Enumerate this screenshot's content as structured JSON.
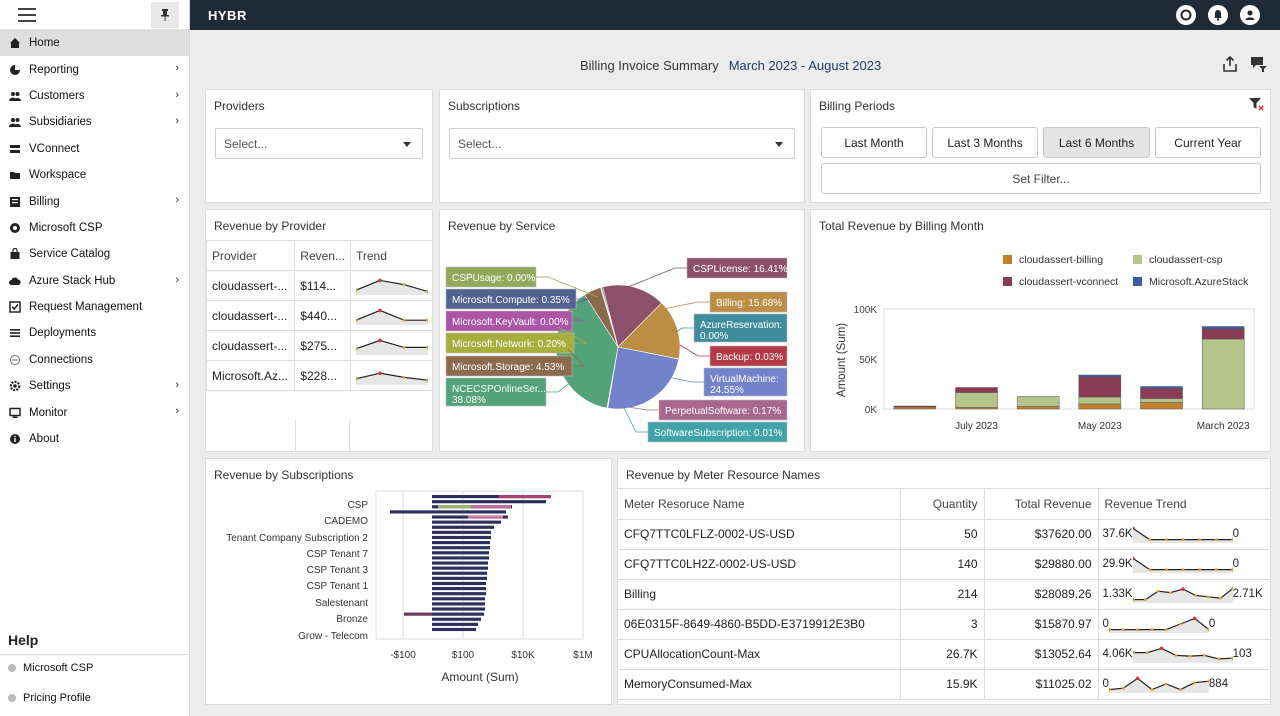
{
  "app": {
    "brand": "HYBR"
  },
  "sidebar": {
    "items": [
      {
        "label": "Home",
        "icon": "home-icon",
        "chevron": false,
        "active": true
      },
      {
        "label": "Reporting",
        "icon": "chart-pie-icon",
        "chevron": true
      },
      {
        "label": "Customers",
        "icon": "users-icon",
        "chevron": true
      },
      {
        "label": "Subsidiaries",
        "icon": "users-icon",
        "chevron": true
      },
      {
        "label": "VConnect",
        "icon": "server-icon",
        "chevron": false
      },
      {
        "label": "Workspace",
        "icon": "folder-icon",
        "chevron": false
      },
      {
        "label": "Billing",
        "icon": "billing-icon",
        "chevron": true
      },
      {
        "label": "Microsoft CSP",
        "icon": "globe-icon",
        "chevron": false
      },
      {
        "label": "Service Catalog",
        "icon": "bag-icon",
        "chevron": false
      },
      {
        "label": "Azure Stack Hub",
        "icon": "cloud-icon",
        "chevron": true
      },
      {
        "label": "Request Management",
        "icon": "check-square-icon",
        "chevron": false
      },
      {
        "label": "Deployments",
        "icon": "list-icon",
        "chevron": false
      },
      {
        "label": "Connections",
        "icon": "plug-icon",
        "chevron": false
      },
      {
        "label": "Settings",
        "icon": "gear-icon",
        "chevron": true
      },
      {
        "label": "Monitor",
        "icon": "monitor-icon",
        "chevron": true
      },
      {
        "label": "About",
        "icon": "info-icon",
        "chevron": false
      }
    ],
    "help_title": "Help",
    "help_items": [
      "Microsoft CSP",
      "Pricing Profile"
    ]
  },
  "header": {
    "title": "Billing Invoice Summary",
    "range": "March 2023 - August 2023"
  },
  "filters": {
    "providers": {
      "title": "Providers",
      "placeholder": "Select..."
    },
    "subscriptions": {
      "title": "Subscriptions",
      "placeholder": "Select..."
    },
    "billing_periods": {
      "title": "Billing Periods",
      "buttons": [
        "Last Month",
        "Last 3 Months",
        "Last 6 Months",
        "Current Year"
      ],
      "selected": "Last 6 Months",
      "set_filter": "Set Filter..."
    }
  },
  "revenue_by_provider": {
    "title": "Revenue by Provider",
    "columns": [
      "Provider",
      "Reven...",
      "Trend"
    ],
    "rows": [
      {
        "provider": "cloudassert-...",
        "revenue": "$114..."
      },
      {
        "provider": "cloudassert-...",
        "revenue": "$440..."
      },
      {
        "provider": "cloudassert-...",
        "revenue": "$275..."
      },
      {
        "provider": "Microsoft.Az...",
        "revenue": "$228..."
      }
    ]
  },
  "revenue_by_service": {
    "title": "Revenue by Service",
    "labels": [
      {
        "text": "CSPUsage: 0.00%",
        "color": "#93a85a"
      },
      {
        "text": "Microsoft.Compute: 0.35%",
        "color": "#52638f"
      },
      {
        "text": "Microsoft.KeyVault: 0.00%",
        "color": "#ab55a6"
      },
      {
        "text": "Microsoft.Network: 0.20%",
        "color": "#a9ad3c"
      },
      {
        "text": "Microsoft.Storage: 4.53%",
        "color": "#8c6a4e"
      },
      {
        "text": "NCECSPOnlineSer...",
        "text2": "38.08%",
        "color": "#54a27a"
      },
      {
        "text": "CSPLicense: 16.41%",
        "color": "#8c5068"
      },
      {
        "text": "Billing: 15.68%",
        "color": "#bc8d43"
      },
      {
        "text": "AzureReservation:",
        "text2": "0.00%",
        "color": "#3f8d9c"
      },
      {
        "text": "Backup: 0.03%",
        "color": "#b63a45"
      },
      {
        "text": "VirtualMachine:",
        "text2": "24.55%",
        "color": "#7383cb"
      },
      {
        "text": "PerpetualSoftware: 0.17%",
        "color": "#a8678f"
      },
      {
        "text": "SoftwareSubscription: 0.01%",
        "color": "#3fa3a9"
      }
    ]
  },
  "revenue_by_meter": {
    "title": "Revenue by Meter Resource Names",
    "columns": [
      "Meter Resoruce Name",
      "Quantity",
      "Total Revenue",
      "Revenue Trend"
    ],
    "rows": [
      {
        "name": "CFQ7TTC0LFLZ-0002-US-USD",
        "quantity": "50",
        "revenue": "$37620.00",
        "t_start": "37.6K",
        "t_end": "0"
      },
      {
        "name": "CFQ7TTC0LH2Z-0002-US-USD",
        "quantity": "140",
        "revenue": "$29880.00",
        "t_start": "29.9K",
        "t_end": "0"
      },
      {
        "name": "Billing",
        "quantity": "214",
        "revenue": "$28089.26",
        "t_start": "1.33K",
        "t_end": "2.71K"
      },
      {
        "name": "06E0315F-8649-4860-B5DD-E3719912E3B0",
        "quantity": "3",
        "revenue": "$15870.97",
        "t_start": "0",
        "t_end": "0"
      },
      {
        "name": "CPUAllocationCount-Max",
        "quantity": "26.7K",
        "revenue": "$13052.64",
        "t_start": "4.06K",
        "t_end": "103"
      },
      {
        "name": "MemoryConsumed-Max",
        "quantity": "15.9K",
        "revenue": "$11025.02",
        "t_start": "0",
        "t_end": "884"
      }
    ]
  },
  "chart_data": [
    {
      "type": "pie",
      "title": "Revenue by Service",
      "slices": [
        {
          "label": "NCECSPOnlineSer...",
          "value": 38.08,
          "color": "#54a27a"
        },
        {
          "label": "CSPLicense",
          "value": 16.41,
          "color": "#8c5068"
        },
        {
          "label": "Billing",
          "value": 15.68,
          "color": "#bc8d43"
        },
        {
          "label": "VirtualMachine",
          "value": 24.55,
          "color": "#7383cb"
        },
        {
          "label": "Microsoft.Storage",
          "value": 4.53,
          "color": "#8c6a4e"
        },
        {
          "label": "Microsoft.Compute",
          "value": 0.35,
          "color": "#52638f"
        },
        {
          "label": "Microsoft.Network",
          "value": 0.2,
          "color": "#a9ad3c"
        },
        {
          "label": "PerpetualSoftware",
          "value": 0.17,
          "color": "#a8678f"
        },
        {
          "label": "Backup",
          "value": 0.03,
          "color": "#b63a45"
        },
        {
          "label": "SoftwareSubscription",
          "value": 0.01,
          "color": "#3fa3a9"
        }
      ]
    },
    {
      "type": "bar",
      "title": "Total Revenue by Billing Month",
      "stacked": true,
      "legend_position": "top",
      "ylabel": "Amount (Sum)",
      "yticks": [
        "100K",
        "50K",
        "0K"
      ],
      "ylim": [
        0,
        100000
      ],
      "categories": [
        "",
        "July 2023",
        "",
        "May 2023",
        "",
        "March 2023"
      ],
      "series": [
        {
          "name": "cloudassert-billing",
          "color": "#c6802c",
          "values": [
            2000,
            1500,
            2500,
            5000,
            6500,
            0
          ]
        },
        {
          "name": "cloudassert-csp",
          "color": "#b5c58a",
          "values": [
            0,
            15000,
            10000,
            7000,
            4000,
            70000
          ]
        },
        {
          "name": "cloudassert-vconnect",
          "color": "#8a3b55",
          "values": [
            1000,
            5000,
            0,
            20000,
            10000,
            10000
          ]
        },
        {
          "name": "Microsoft.AzureStack",
          "color": "#3e5aa8",
          "values": [
            0,
            0,
            0,
            2000,
            2000,
            2500
          ]
        }
      ]
    },
    {
      "type": "bar",
      "orientation": "horizontal",
      "title": "Revenue by Subscriptions",
      "xlabel": "Amount (Sum)",
      "xticks": [
        "-$100",
        "$100",
        "$10K",
        "$1M"
      ],
      "categories": [
        "CSP",
        "CADEMO",
        "Tenant Company Subscription 2",
        "CSP Tenant 7",
        "CSP Tenant 3",
        "CSP Tenant 1",
        "Salestenant",
        "Bronze",
        "Grow - Telecom"
      ]
    }
  ]
}
